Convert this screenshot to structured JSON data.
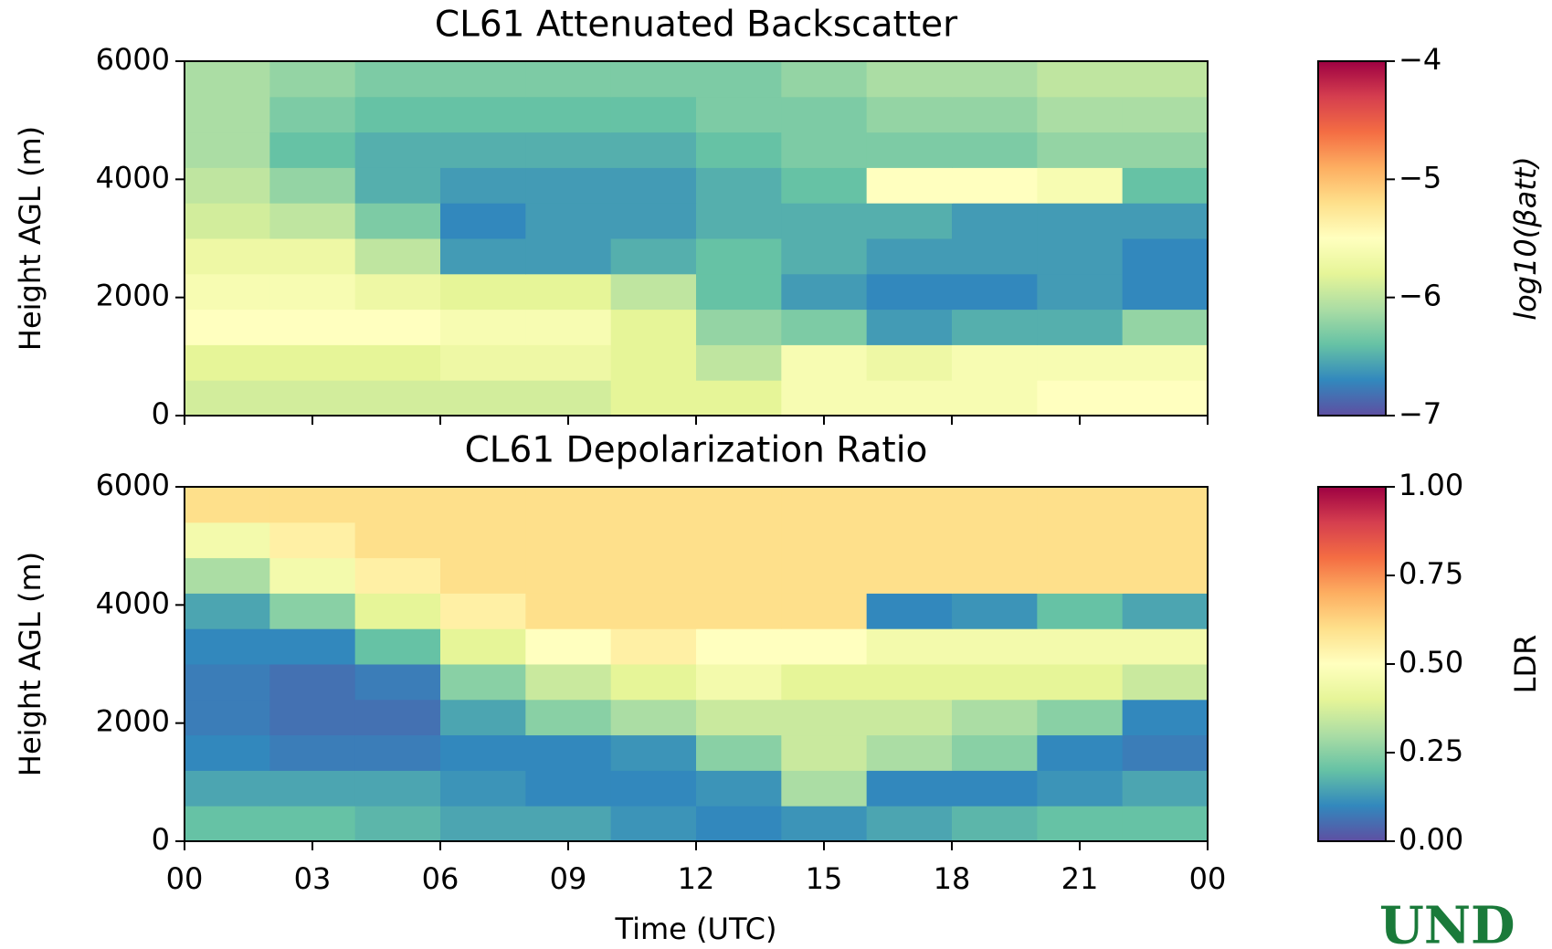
{
  "chart_data": [
    {
      "type": "heatmap",
      "title": "CL61 Attenuated Backscatter",
      "ylabel": "Height AGL (m)",
      "colormap": "Spectral_r",
      "colorbar_label": "log10(βatt)",
      "xlim": [
        0,
        24
      ],
      "ylim": [
        0,
        6000
      ],
      "yticks": [
        0,
        2000,
        4000,
        6000
      ],
      "x": [
        1,
        3,
        5,
        7,
        9,
        11,
        13,
        15,
        17,
        19,
        21,
        23
      ],
      "y": [
        300,
        900,
        1500,
        2100,
        2700,
        3300,
        3900,
        4500,
        5100,
        5700
      ],
      "z": [
        [
          -5.9,
          -5.9,
          -5.9,
          -5.9,
          -5.9,
          -5.8,
          -5.8,
          -5.6,
          -5.6,
          -5.6,
          -5.5,
          -5.5
        ],
        [
          -5.8,
          -5.8,
          -5.8,
          -5.7,
          -5.7,
          -5.8,
          -6.0,
          -5.6,
          -5.7,
          -5.6,
          -5.6,
          -5.6
        ],
        [
          -5.5,
          -5.5,
          -5.5,
          -5.6,
          -5.6,
          -5.8,
          -6.2,
          -6.3,
          -6.6,
          -6.5,
          -6.5,
          -6.2
        ],
        [
          -5.6,
          -5.6,
          -5.7,
          -5.8,
          -5.8,
          -6.0,
          -6.4,
          -6.6,
          -6.7,
          -6.7,
          -6.6,
          -6.7
        ],
        [
          -5.7,
          -5.7,
          -6.0,
          -6.6,
          -6.6,
          -6.5,
          -6.4,
          -6.5,
          -6.6,
          -6.6,
          -6.6,
          -6.7
        ],
        [
          -5.9,
          -6.0,
          -6.3,
          -6.7,
          -6.6,
          -6.6,
          -6.5,
          -6.5,
          -6.5,
          -6.6,
          -6.6,
          -6.6
        ],
        [
          -6.0,
          -6.2,
          -6.5,
          -6.6,
          -6.6,
          -6.6,
          -6.5,
          -6.4,
          -5.5,
          -5.5,
          -5.6,
          -6.4
        ],
        [
          -6.1,
          -6.4,
          -6.5,
          -6.5,
          -6.5,
          -6.5,
          -6.4,
          -6.3,
          -6.3,
          -6.3,
          -6.2,
          -6.2
        ],
        [
          -6.1,
          -6.3,
          -6.4,
          -6.4,
          -6.4,
          -6.4,
          -6.3,
          -6.3,
          -6.2,
          -6.2,
          -6.1,
          -6.1
        ],
        [
          -6.1,
          -6.2,
          -6.3,
          -6.3,
          -6.3,
          -6.3,
          -6.3,
          -6.2,
          -6.1,
          -6.1,
          -6.0,
          -6.0
        ]
      ],
      "clim": [
        -7,
        -4
      ],
      "colorbar_ticks": [
        {
          "value": -4,
          "label": "−4"
        },
        {
          "value": -5,
          "label": "−5"
        },
        {
          "value": -6,
          "label": "−6"
        },
        {
          "value": -7,
          "label": "−7"
        }
      ]
    },
    {
      "type": "heatmap",
      "title": "CL61 Depolarization Ratio",
      "ylabel": "Height AGL (m)",
      "xlabel": "Time (UTC)",
      "colormap": "Spectral_r",
      "colorbar_label": "LDR",
      "xlim": [
        0,
        24
      ],
      "ylim": [
        0,
        6000
      ],
      "yticks": [
        0,
        2000,
        4000,
        6000
      ],
      "xticks": [
        {
          "value": 0,
          "label": "00"
        },
        {
          "value": 3,
          "label": "03"
        },
        {
          "value": 6,
          "label": "06"
        },
        {
          "value": 9,
          "label": "09"
        },
        12,
        15,
        18,
        21,
        {
          "value": 24,
          "label": "00"
        }
      ],
      "x": [
        1,
        3,
        5,
        7,
        9,
        11,
        13,
        15,
        17,
        19,
        21,
        23
      ],
      "y": [
        300,
        900,
        1500,
        2100,
        2700,
        3300,
        3900,
        4500,
        5100,
        5700
      ],
      "z": [
        [
          0.2,
          0.2,
          0.18,
          0.15,
          0.15,
          0.12,
          0.1,
          0.12,
          0.15,
          0.18,
          0.2,
          0.2
        ],
        [
          0.15,
          0.15,
          0.15,
          0.12,
          0.1,
          0.1,
          0.12,
          0.3,
          0.1,
          0.1,
          0.12,
          0.15
        ],
        [
          0.1,
          0.08,
          0.08,
          0.1,
          0.1,
          0.12,
          0.25,
          0.35,
          0.3,
          0.25,
          0.1,
          0.08
        ],
        [
          0.08,
          0.06,
          0.06,
          0.15,
          0.25,
          0.3,
          0.35,
          0.35,
          0.35,
          0.3,
          0.25,
          0.1
        ],
        [
          0.08,
          0.06,
          0.08,
          0.25,
          0.35,
          0.4,
          0.45,
          0.4,
          0.4,
          0.4,
          0.4,
          0.35
        ],
        [
          0.1,
          0.1,
          0.2,
          0.4,
          0.5,
          0.55,
          0.5,
          0.5,
          0.45,
          0.45,
          0.45,
          0.45
        ],
        [
          0.15,
          0.25,
          0.4,
          0.55,
          0.6,
          0.6,
          0.6,
          0.6,
          0.1,
          0.12,
          0.2,
          0.15
        ],
        [
          0.3,
          0.45,
          0.55,
          0.6,
          0.6,
          0.6,
          0.6,
          0.6,
          0.6,
          0.6,
          0.6,
          0.6
        ],
        [
          0.45,
          0.55,
          0.6,
          0.6,
          0.6,
          0.6,
          0.6,
          0.6,
          0.6,
          0.6,
          0.6,
          0.6
        ],
        [
          0.6,
          0.6,
          0.6,
          0.6,
          0.6,
          0.6,
          0.6,
          0.6,
          0.6,
          0.6,
          0.6,
          0.6
        ]
      ],
      "clim": [
        0,
        1
      ],
      "colorbar_ticks": [
        {
          "value": 0,
          "label": "0.00"
        },
        0.25,
        {
          "value": 0.5,
          "label": "0.50"
        },
        0.75,
        {
          "value": 1,
          "label": "1.00"
        }
      ]
    }
  ],
  "logo": "UND"
}
